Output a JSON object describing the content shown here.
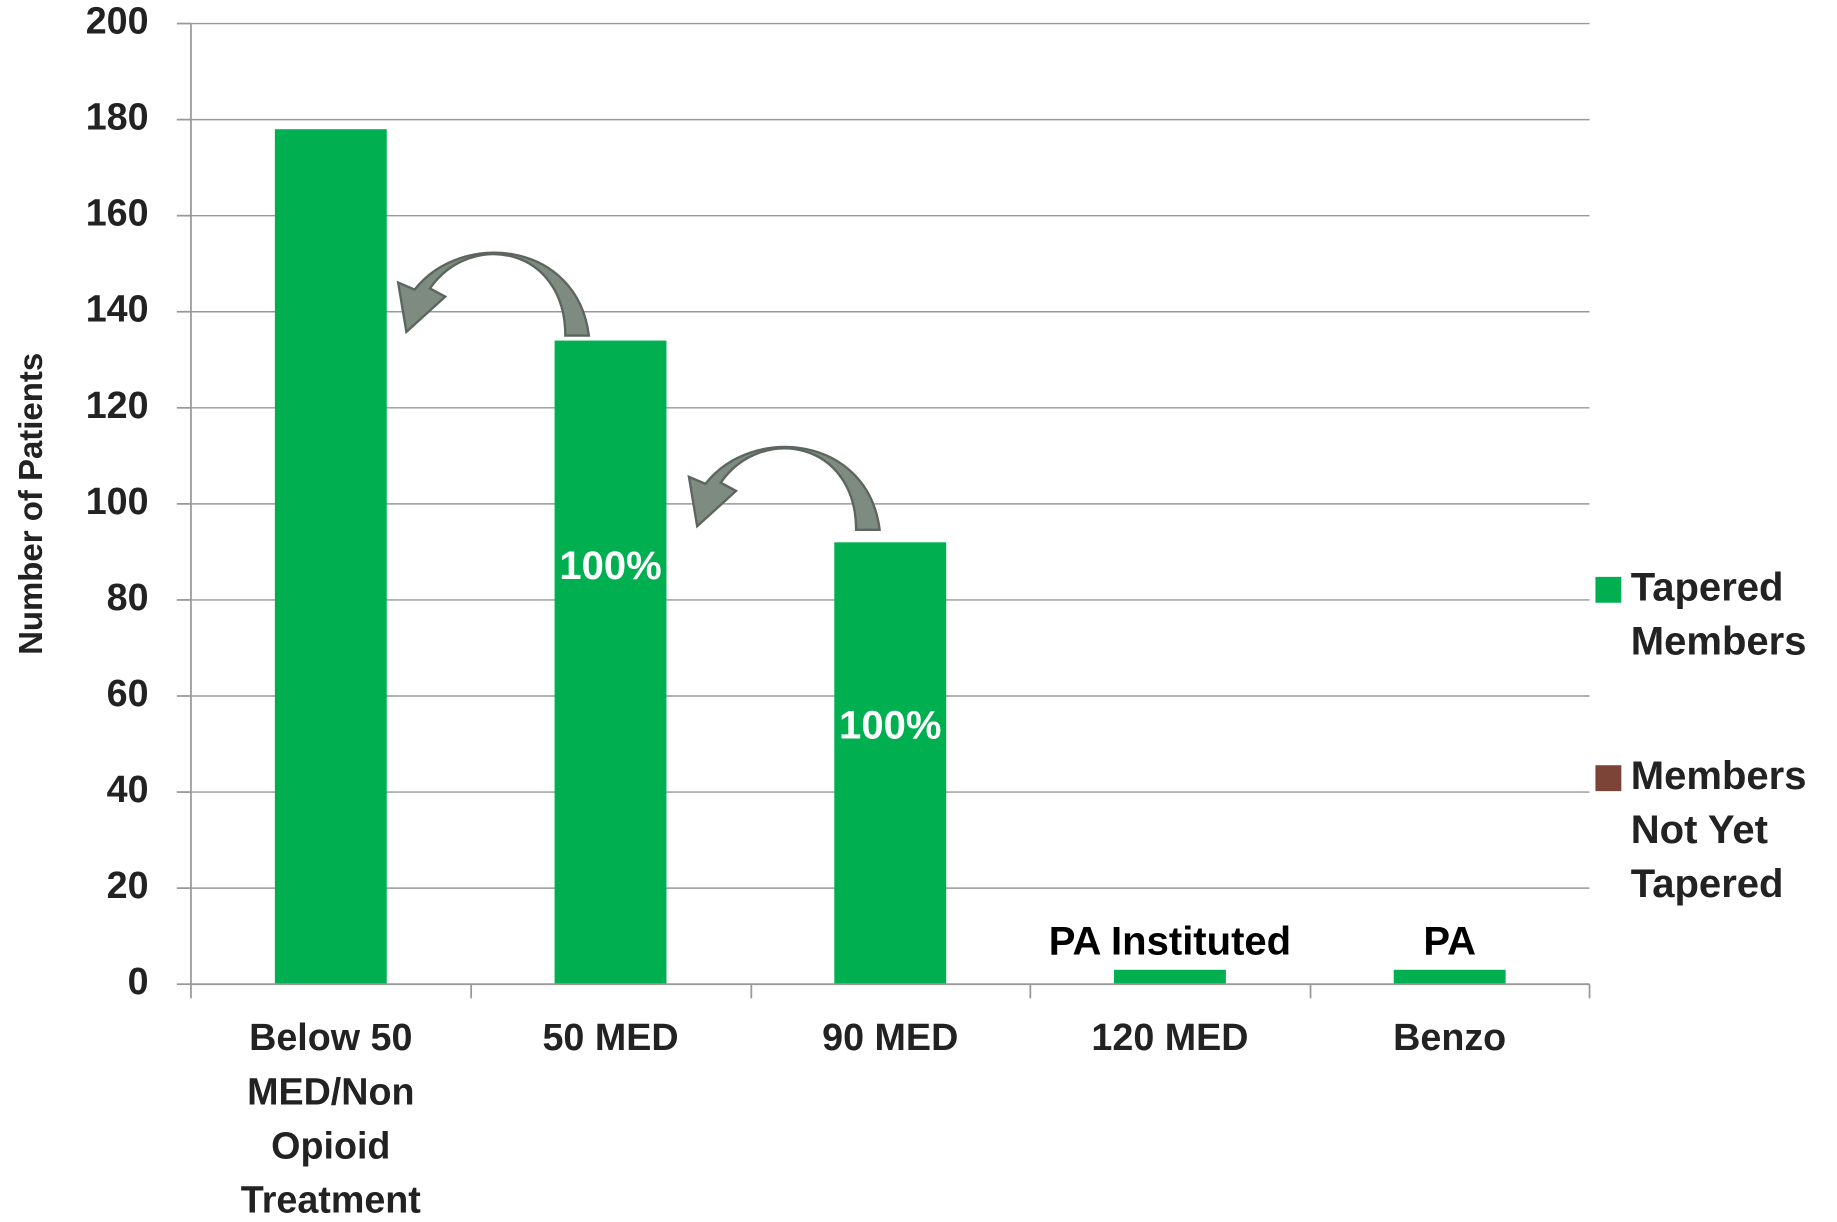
{
  "chart_data": {
    "type": "stacked_bar",
    "y_axis_label": "Number of Patients",
    "categories": [
      "Below 50 MED/Non Opioid Treatment",
      "50 MED",
      "90 MED",
      "120 MED",
      "Benzo"
    ],
    "series": [
      {
        "name": "Tapered Members",
        "color": "#00b050",
        "values": [
          178,
          134,
          92,
          3,
          3
        ]
      },
      {
        "name": "Members Not Yet Tapered",
        "color": "#7b4436",
        "values": [
          0,
          0,
          0,
          0,
          0
        ]
      }
    ],
    "annotations": [
      {
        "text": "100%",
        "category": "50 MED"
      },
      {
        "text": "100%",
        "category": "90 MED"
      },
      {
        "text": "PA Instituted",
        "category": "120 MED"
      },
      {
        "text": "PA",
        "category": "Benzo"
      }
    ],
    "ylim": [
      0,
      200
    ],
    "yticks": [
      0,
      20,
      40,
      60,
      80,
      100,
      120,
      140,
      160,
      180,
      200
    ],
    "grid": true,
    "legend": "right"
  }
}
